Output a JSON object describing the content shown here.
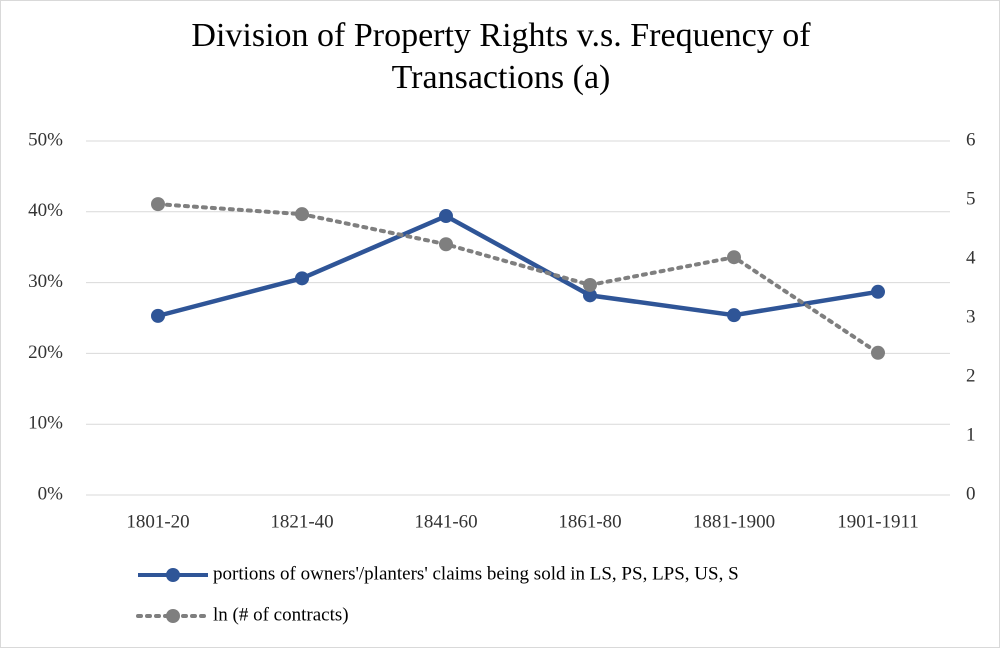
{
  "chart_data": {
    "type": "line",
    "title": "Division of Property Rights v.s. Frequency of Transactions (a)",
    "categories": [
      "1801-20",
      "1821-40",
      "1841-60",
      "1861-80",
      "1881-1900",
      "1901-1911"
    ],
    "series": [
      {
        "name": "portions of owners'/planters' claims being sold in LS, PS, LPS, US, S",
        "color": "#2f5597",
        "style": "solid",
        "values": [
          25.3,
          30.6,
          39.4,
          28.2,
          25.4,
          28.7
        ]
      },
      {
        "name": "ln (# of contracts)",
        "color": "#7f7f7f",
        "style": "dotted",
        "axis": "y2",
        "values": [
          4.93,
          4.76,
          4.25,
          3.56,
          4.03,
          2.41
        ]
      }
    ],
    "ylim": [
      0,
      50
    ],
    "yticks": [
      {
        "value": 0,
        "label": "0%"
      },
      {
        "value": 10,
        "label": "10%"
      },
      {
        "value": 20,
        "label": "20%"
      },
      {
        "value": 30,
        "label": "30%"
      },
      {
        "value": 40,
        "label": "40%"
      },
      {
        "value": 50,
        "label": "50%"
      }
    ],
    "y2lim": [
      0,
      6
    ],
    "y2ticks": [
      0,
      1,
      2,
      3,
      4,
      5,
      6
    ],
    "grid": true
  }
}
